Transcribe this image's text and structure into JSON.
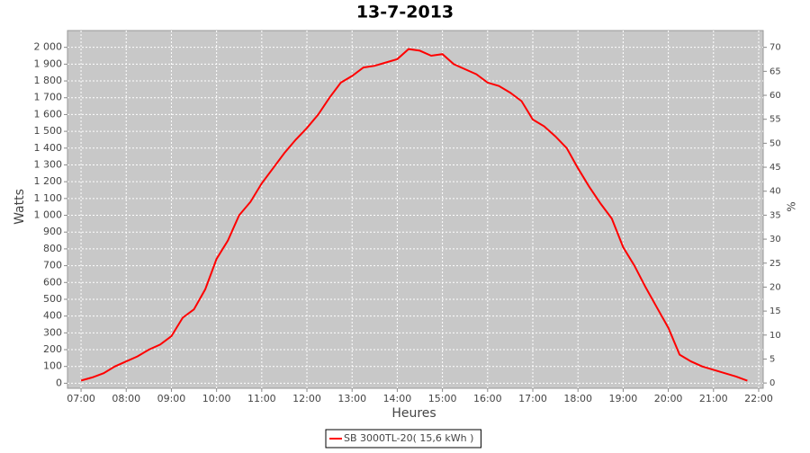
{
  "chart_data": {
    "type": "line",
    "title": "13-7-2013",
    "xlabel": "Heures",
    "ylabel": "Watts",
    "y2label": "%",
    "xlim": [
      6.7,
      22.1
    ],
    "xticks": [
      {
        "value": 7,
        "label": "07:00"
      },
      {
        "value": 8,
        "label": "08:00"
      },
      {
        "value": 9,
        "label": "09:00"
      },
      {
        "value": 10,
        "label": "10:00"
      },
      {
        "value": 11,
        "label": "11:00"
      },
      {
        "value": 12,
        "label": "12:00"
      },
      {
        "value": 13,
        "label": "13:00"
      },
      {
        "value": 14,
        "label": "14:00"
      },
      {
        "value": 15,
        "label": "15:00"
      },
      {
        "value": 16,
        "label": "16:00"
      },
      {
        "value": 17,
        "label": "17:00"
      },
      {
        "value": 18,
        "label": "18:00"
      },
      {
        "value": 19,
        "label": "19:00"
      },
      {
        "value": 20,
        "label": "20:00"
      },
      {
        "value": 21,
        "label": "21:00"
      },
      {
        "value": 22,
        "label": "22:00"
      }
    ],
    "ylim": [
      -30,
      2100
    ],
    "yticks": [
      0,
      100,
      200,
      300,
      400,
      500,
      600,
      700,
      800,
      900,
      {
        "value": 1000,
        "label": "1 000"
      },
      {
        "value": 1100,
        "label": "1 100"
      },
      {
        "value": 1200,
        "label": "1 200"
      },
      {
        "value": 1300,
        "label": "1 300"
      },
      {
        "value": 1400,
        "label": "1 400"
      },
      {
        "value": 1500,
        "label": "1 500"
      },
      {
        "value": 1600,
        "label": "1 600"
      },
      {
        "value": 1700,
        "label": "1 700"
      },
      {
        "value": 1800,
        "label": "1 800"
      },
      {
        "value": 1900,
        "label": "1 900"
      },
      {
        "value": 2000,
        "label": "2 000"
      }
    ],
    "y2lim": [
      -1.1,
      73.5
    ],
    "y2ticks": [
      0,
      5,
      10,
      15,
      20,
      25,
      30,
      35,
      40,
      45,
      50,
      55,
      60,
      65,
      70
    ],
    "grid": true,
    "series": [
      {
        "name": "SB 3000TL-20( 15,6 kWh )",
        "color": "#ff0000",
        "x": [
          7,
          7.25,
          7.5,
          7.75,
          8,
          8.25,
          8.5,
          8.75,
          9,
          9.25,
          9.5,
          9.75,
          10,
          10.25,
          10.5,
          10.75,
          11,
          11.25,
          11.5,
          11.75,
          12,
          12.25,
          12.5,
          12.75,
          13,
          13.25,
          13.5,
          13.75,
          14,
          14.25,
          14.5,
          14.75,
          15,
          15.25,
          15.5,
          15.75,
          16,
          16.25,
          16.5,
          16.75,
          17,
          17.25,
          17.5,
          17.75,
          18,
          18.25,
          18.5,
          18.75,
          19,
          19.25,
          19.5,
          19.75,
          20,
          20.25,
          20.5,
          20.75,
          21,
          21.25,
          21.5,
          21.75
        ],
        "values": [
          16,
          35,
          60,
          100,
          130,
          160,
          200,
          230,
          280,
          390,
          440,
          560,
          740,
          850,
          1000,
          1080,
          1190,
          1280,
          1370,
          1450,
          1520,
          1600,
          1700,
          1790,
          1830,
          1880,
          1890,
          1910,
          1930,
          1990,
          1980,
          1950,
          1960,
          1900,
          1870,
          1840,
          1790,
          1770,
          1730,
          1680,
          1570,
          1530,
          1470,
          1400,
          1280,
          1170,
          1070,
          980,
          810,
          700,
          570,
          450,
          330,
          170,
          130,
          100,
          80,
          60,
          40,
          15
        ]
      }
    ]
  }
}
